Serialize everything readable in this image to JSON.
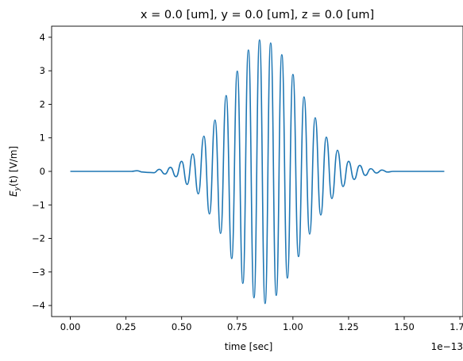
{
  "chart_data": {
    "type": "line",
    "title": "x = 0.0 [um], y = 0.0 [um], z = 0.0 [um]",
    "xlabel": "time [sec]",
    "ylabel": "E_y(t) [V/m]",
    "ylabel_parts": {
      "prefix": "E",
      "sub": "y",
      "suffix": "(t) [V/m]"
    },
    "x_offset_text": "1e−13",
    "x_scale": 1e-13,
    "xlim": [
      -0.084,
      1.764
    ],
    "ylim": [
      -4.33,
      4.33
    ],
    "x_ticks": [
      0.0,
      0.25,
      0.5,
      0.75,
      1.0,
      1.25,
      1.5,
      1.75
    ],
    "x_tick_labels": [
      "0.00",
      "0.25",
      "0.50",
      "0.75",
      "1.00",
      "1.25",
      "1.50",
      "1.75"
    ],
    "y_ticks": [
      -4,
      -3,
      -2,
      -1,
      0,
      1,
      2,
      3,
      4
    ],
    "y_tick_labels": [
      "−4",
      "−3",
      "−2",
      "−1",
      "0",
      "1",
      "2",
      "3",
      "4"
    ],
    "grid": false,
    "legend": "none",
    "series": [
      {
        "color": "#1f77b4",
        "peaks": [
          [
            0.3,
            0.02
          ],
          [
            0.345,
            -0.03
          ],
          [
            0.4,
            0.06
          ],
          [
            0.45,
            0.12
          ],
          [
            0.5,
            0.3
          ],
          [
            0.55,
            0.52
          ],
          [
            0.6,
            1.05
          ],
          [
            0.65,
            1.53
          ],
          [
            0.7,
            2.26
          ],
          [
            0.75,
            2.99
          ],
          [
            0.8,
            3.62
          ],
          [
            0.85,
            3.92
          ],
          [
            0.9,
            3.83
          ],
          [
            0.95,
            3.48
          ],
          [
            1.0,
            2.89
          ],
          [
            1.05,
            2.22
          ],
          [
            1.1,
            1.6
          ],
          [
            1.15,
            1.02
          ],
          [
            1.2,
            0.63
          ],
          [
            1.25,
            0.3
          ],
          [
            1.3,
            0.18
          ],
          [
            1.35,
            0.08
          ],
          [
            1.4,
            0.04
          ]
        ],
        "troughs": [
          [
            0.325,
            -0.02
          ],
          [
            0.375,
            -0.04
          ],
          [
            0.425,
            -0.08
          ],
          [
            0.475,
            -0.16
          ],
          [
            0.525,
            -0.39
          ],
          [
            0.575,
            -0.67
          ],
          [
            0.625,
            -1.27
          ],
          [
            0.675,
            -1.85
          ],
          [
            0.725,
            -2.6
          ],
          [
            0.775,
            -3.34
          ],
          [
            0.825,
            -3.77
          ],
          [
            0.875,
            -3.94
          ],
          [
            0.925,
            -3.7
          ],
          [
            0.975,
            -3.18
          ],
          [
            1.025,
            -2.54
          ],
          [
            1.075,
            -1.87
          ],
          [
            1.125,
            -1.3
          ],
          [
            1.175,
            -0.81
          ],
          [
            1.225,
            -0.45
          ],
          [
            1.275,
            -0.24
          ],
          [
            1.325,
            -0.12
          ],
          [
            1.375,
            -0.05
          ],
          [
            1.425,
            -0.02
          ]
        ],
        "x_range": [
          0.0,
          1.68
        ]
      }
    ]
  }
}
